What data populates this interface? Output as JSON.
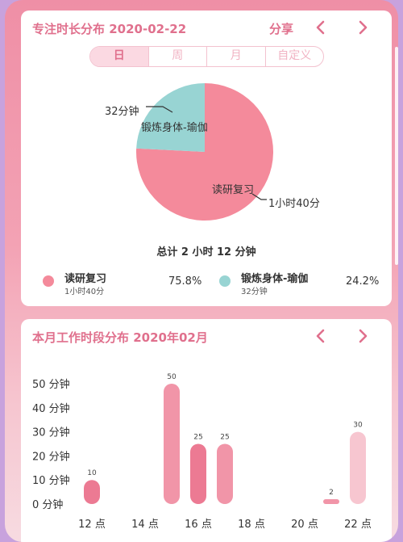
{
  "card1": {
    "title": "专注时长分布  2020-02-22",
    "share_label": "分享",
    "tabs": [
      {
        "label": "日",
        "active": true
      },
      {
        "label": "周",
        "active": false
      },
      {
        "label": "月",
        "active": false
      },
      {
        "label": "自定义",
        "active": false
      }
    ],
    "total_text": "总计 2 小时 12 分钟",
    "legend": [
      {
        "name": "读研复习",
        "duration": "1小时40分",
        "percent": "75.8%",
        "color": "#f48a9b"
      },
      {
        "name": "锻炼身体-瑜伽",
        "duration": "32分钟",
        "percent": "24.2%",
        "color": "#98d4d3"
      }
    ]
  },
  "card2": {
    "title": "本月工作时段分布  2020年02月"
  },
  "chart_data": [
    {
      "type": "pie",
      "labels": [
        "读研复习",
        "锻炼身体-瑜伽"
      ],
      "values": [
        75.8,
        24.2
      ],
      "value_labels": [
        "1小时40分",
        "32分钟"
      ],
      "colors": [
        "#f48a9b",
        "#98d4d3"
      ]
    },
    {
      "type": "bar",
      "y_ticks": [
        "0 分钟",
        "10 分钟",
        "20 分钟",
        "30 分钟",
        "40 分钟",
        "50 分钟"
      ],
      "ylim": [
        0,
        50
      ],
      "x_tick_labels": [
        "12 点",
        "14 点",
        "16 点",
        "18 点",
        "20 点",
        "22 点"
      ],
      "bars": [
        {
          "hour": 12,
          "value": 10,
          "color": "#ec7a93"
        },
        {
          "hour": 15,
          "value": 50,
          "color": "#f195a8"
        },
        {
          "hour": 16,
          "value": 25,
          "color": "#ec7a93"
        },
        {
          "hour": 17,
          "value": 25,
          "color": "#f195a8"
        },
        {
          "hour": 21,
          "value": 2,
          "color": "#f195a8"
        },
        {
          "hour": 22,
          "value": 30,
          "color": "#f7c6d0"
        }
      ]
    }
  ]
}
